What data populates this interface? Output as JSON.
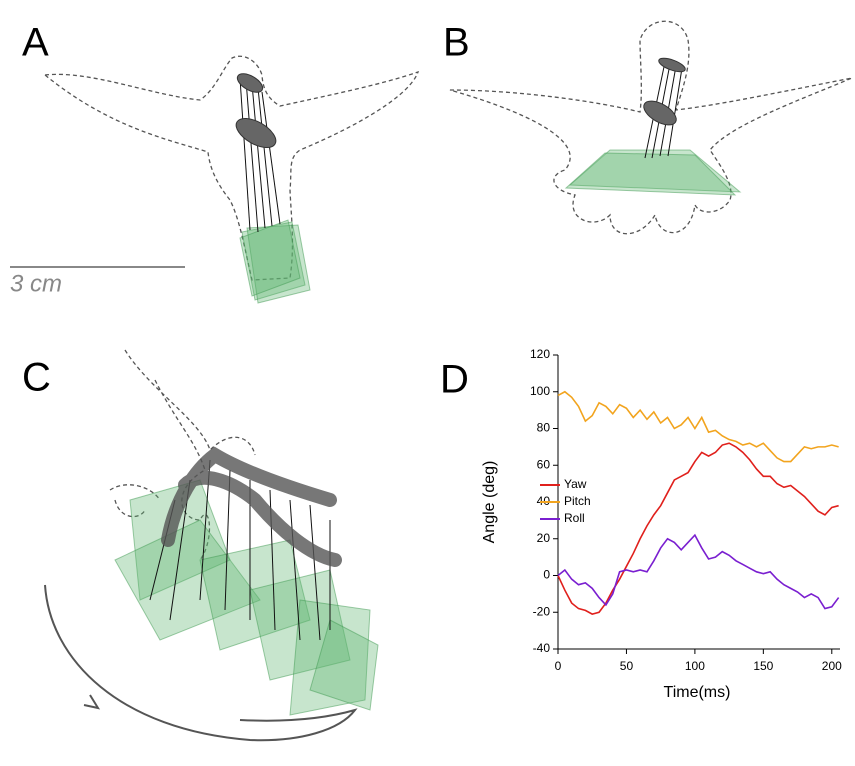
{
  "panel_labels": [
    "A",
    "B",
    "C"
  ],
  "scale_bar": {
    "label": "3 cm"
  },
  "chart_data": {
    "type": "line",
    "panel_label": "D",
    "x_label": "Time(ms)",
    "y_label": "Angle (deg)",
    "x": [
      0,
      5,
      10,
      15,
      20,
      25,
      30,
      35,
      40,
      45,
      50,
      55,
      60,
      65,
      70,
      75,
      80,
      85,
      90,
      95,
      100,
      105,
      110,
      115,
      120,
      125,
      130,
      135,
      140,
      145,
      150,
      155,
      160,
      165,
      170,
      175,
      180,
      185,
      190,
      195,
      200,
      205
    ],
    "series": [
      {
        "name": "Yaw",
        "color": "#e0201c",
        "values": [
          0,
          -8,
          -15,
          -18,
          -19,
          -21,
          -20,
          -15,
          -8,
          -2,
          5,
          12,
          20,
          27,
          33,
          38,
          45,
          52,
          54,
          56,
          62,
          67,
          65,
          67,
          71,
          72,
          70,
          67,
          63,
          58,
          54,
          54,
          50,
          48,
          49,
          46,
          43,
          39,
          35,
          33,
          37,
          38
        ]
      },
      {
        "name": "Pitch",
        "color": "#f2a41e",
        "values": [
          98,
          100,
          97,
          92,
          84,
          87,
          94,
          92,
          88,
          93,
          91,
          86,
          90,
          85,
          89,
          83,
          86,
          80,
          82,
          86,
          80,
          86,
          78,
          79,
          76,
          74,
          73,
          71,
          72,
          70,
          72,
          68,
          64,
          62,
          62,
          66,
          70,
          69,
          70,
          70,
          71,
          70
        ]
      },
      {
        "name": "Roll",
        "color": "#7a1fd0",
        "values": [
          0,
          3,
          -2,
          -5,
          -4,
          -7,
          -12,
          -16,
          -10,
          2,
          3,
          2,
          3,
          2,
          8,
          15,
          20,
          18,
          14,
          18,
          22,
          15,
          9,
          10,
          13,
          11,
          8,
          6,
          4,
          2,
          1,
          2,
          -2,
          -5,
          -7,
          -9,
          -12,
          -10,
          -12,
          -18,
          -17,
          -12
        ]
      }
    ],
    "xlim": [
      0,
      206
    ],
    "ylim": [
      -40,
      120
    ],
    "xticks": [
      0,
      50,
      100,
      150,
      200
    ],
    "yticks": [
      -40,
      -20,
      0,
      20,
      40,
      60,
      80,
      100,
      120
    ],
    "legend": "center-left"
  }
}
